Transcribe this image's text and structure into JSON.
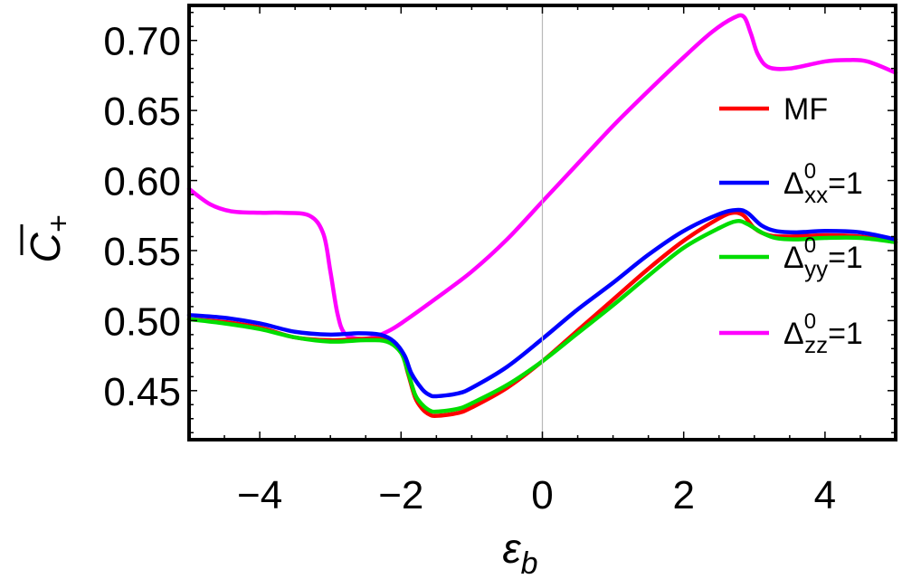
{
  "chart_data": {
    "type": "line",
    "title": "",
    "xlabel": "ε",
    "xlabel_sub": "b",
    "ylabel": "C",
    "ylabel_sub": "+",
    "xlim": [
      -5,
      5
    ],
    "ylim": [
      0.415,
      0.725
    ],
    "xticks": [
      -4,
      -2,
      0,
      2,
      4
    ],
    "xtick_labels": [
      "−4",
      "−2",
      "0",
      "2",
      "4"
    ],
    "yticks": [
      0.45,
      0.5,
      0.55,
      0.6,
      0.65,
      0.7
    ],
    "ytick_labels": [
      "0.45",
      "0.50",
      "0.55",
      "0.60",
      "0.65",
      "0.70"
    ],
    "grid": false,
    "zero_line_x": 0,
    "legend_placement": "right",
    "series": [
      {
        "name": "MF",
        "label_main": "MF",
        "label_sub": "",
        "label_sup": "",
        "label_tail": "",
        "color": "#ff0000",
        "points": [
          [
            -5,
            0.501
          ],
          [
            -4.5,
            0.499
          ],
          [
            -4,
            0.495
          ],
          [
            -3.5,
            0.488
          ],
          [
            -3,
            0.486
          ],
          [
            -2.5,
            0.487
          ],
          [
            -2.2,
            0.486
          ],
          [
            -2.0,
            0.478
          ],
          [
            -1.9,
            0.462
          ],
          [
            -1.8,
            0.445
          ],
          [
            -1.7,
            0.437
          ],
          [
            -1.6,
            0.433
          ],
          [
            -1.5,
            0.432
          ],
          [
            -1.2,
            0.434
          ],
          [
            -1,
            0.438
          ],
          [
            -0.5,
            0.452
          ],
          [
            0,
            0.471
          ],
          [
            0.5,
            0.493
          ],
          [
            1,
            0.515
          ],
          [
            1.5,
            0.537
          ],
          [
            2,
            0.557
          ],
          [
            2.5,
            0.573
          ],
          [
            2.7,
            0.577
          ],
          [
            2.85,
            0.575
          ],
          [
            3,
            0.566
          ],
          [
            3.2,
            0.561
          ],
          [
            3.5,
            0.56
          ],
          [
            4,
            0.561
          ],
          [
            4.5,
            0.56
          ],
          [
            5,
            0.556
          ]
        ]
      },
      {
        "name": "Δxx0=1",
        "label_main": "Δ",
        "label_sub": "xx",
        "label_sup": "0",
        "label_tail": "=1",
        "color": "#0000ff",
        "points": [
          [
            -5,
            0.504
          ],
          [
            -4.5,
            0.502
          ],
          [
            -4,
            0.498
          ],
          [
            -3.5,
            0.492
          ],
          [
            -3,
            0.49
          ],
          [
            -2.6,
            0.491
          ],
          [
            -2.3,
            0.49
          ],
          [
            -2.1,
            0.485
          ],
          [
            -1.95,
            0.475
          ],
          [
            -1.85,
            0.462
          ],
          [
            -1.7,
            0.451
          ],
          [
            -1.6,
            0.447
          ],
          [
            -1.5,
            0.446
          ],
          [
            -1.2,
            0.448
          ],
          [
            -1,
            0.452
          ],
          [
            -0.5,
            0.467
          ],
          [
            0,
            0.487
          ],
          [
            0.5,
            0.508
          ],
          [
            1,
            0.527
          ],
          [
            1.5,
            0.547
          ],
          [
            2,
            0.564
          ],
          [
            2.5,
            0.576
          ],
          [
            2.75,
            0.579
          ],
          [
            2.9,
            0.577
          ],
          [
            3.1,
            0.568
          ],
          [
            3.3,
            0.564
          ],
          [
            3.6,
            0.563
          ],
          [
            4,
            0.564
          ],
          [
            4.5,
            0.563
          ],
          [
            5,
            0.558
          ]
        ]
      },
      {
        "name": "Δyy0=1",
        "label_main": "Δ",
        "label_sub": "yy",
        "label_sup": "0",
        "label_tail": "=1",
        "color": "#00dd00",
        "points": [
          [
            -5,
            0.501
          ],
          [
            -4.5,
            0.498
          ],
          [
            -4,
            0.494
          ],
          [
            -3.5,
            0.488
          ],
          [
            -3,
            0.485
          ],
          [
            -2.5,
            0.486
          ],
          [
            -2.2,
            0.485
          ],
          [
            -2.0,
            0.477
          ],
          [
            -1.9,
            0.463
          ],
          [
            -1.8,
            0.447
          ],
          [
            -1.7,
            0.44
          ],
          [
            -1.6,
            0.436
          ],
          [
            -1.5,
            0.435
          ],
          [
            -1.2,
            0.437
          ],
          [
            -1,
            0.441
          ],
          [
            -0.5,
            0.454
          ],
          [
            0,
            0.471
          ],
          [
            0.5,
            0.491
          ],
          [
            1,
            0.511
          ],
          [
            1.5,
            0.532
          ],
          [
            2,
            0.552
          ],
          [
            2.5,
            0.566
          ],
          [
            2.75,
            0.571
          ],
          [
            2.9,
            0.569
          ],
          [
            3.1,
            0.563
          ],
          [
            3.3,
            0.559
          ],
          [
            3.6,
            0.558
          ],
          [
            4,
            0.559
          ],
          [
            4.5,
            0.559
          ],
          [
            5,
            0.556
          ]
        ]
      },
      {
        "name": "Δzz0=1",
        "label_main": "Δ",
        "label_sub": "zz",
        "label_sup": "0",
        "label_tail": "=1",
        "color": "#ff00ff",
        "points": [
          [
            -5,
            0.594
          ],
          [
            -4.7,
            0.583
          ],
          [
            -4.4,
            0.578
          ],
          [
            -4,
            0.577
          ],
          [
            -3.7,
            0.577
          ],
          [
            -3.3,
            0.575
          ],
          [
            -3.1,
            0.562
          ],
          [
            -3.0,
            0.535
          ],
          [
            -2.9,
            0.505
          ],
          [
            -2.8,
            0.491
          ],
          [
            -2.6,
            0.487
          ],
          [
            -2.4,
            0.488
          ],
          [
            -2.2,
            0.492
          ],
          [
            -2,
            0.498
          ],
          [
            -1.5,
            0.516
          ],
          [
            -1,
            0.535
          ],
          [
            -0.5,
            0.558
          ],
          [
            0,
            0.585
          ],
          [
            0.5,
            0.612
          ],
          [
            1,
            0.639
          ],
          [
            1.5,
            0.664
          ],
          [
            2,
            0.688
          ],
          [
            2.4,
            0.706
          ],
          [
            2.7,
            0.716
          ],
          [
            2.85,
            0.717
          ],
          [
            2.95,
            0.705
          ],
          [
            3.05,
            0.69
          ],
          [
            3.2,
            0.681
          ],
          [
            3.5,
            0.68
          ],
          [
            4,
            0.685
          ],
          [
            4.3,
            0.686
          ],
          [
            4.6,
            0.685
          ],
          [
            5,
            0.677
          ]
        ]
      }
    ]
  }
}
